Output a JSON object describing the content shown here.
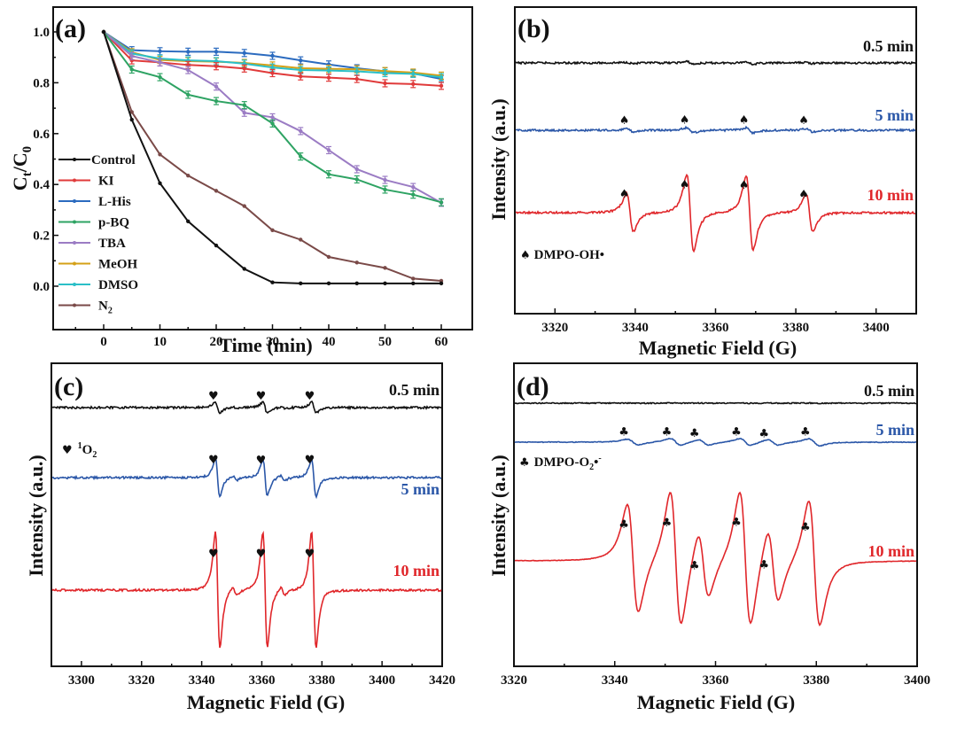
{
  "chart_data": [
    {
      "id": "a",
      "type": "line",
      "panel_label": "(a)",
      "title": "",
      "xlabel": "Time (min)",
      "ylabel": "Ct/C0",
      "ylabel_main": "C",
      "ylabel_sub1": "t",
      "ylabel_mid": "/C",
      "ylabel_sub2": "0",
      "xlim": [
        -10,
        65
      ],
      "ylim": [
        -0.1,
        1.1
      ],
      "xticks": [
        0,
        10,
        20,
        30,
        40,
        50,
        60
      ],
      "xtick_labels": [
        "0",
        "10",
        "20",
        "30",
        "40",
        "50",
        "60"
      ],
      "yticks": [
        0.0,
        0.2,
        0.4,
        0.6,
        0.8,
        1.0
      ],
      "ytick_labels": [
        "0.0",
        "0.2",
        "0.4",
        "0.6",
        "0.8",
        "1.0"
      ],
      "legend_position": "center-left",
      "x": [
        0,
        5,
        10,
        15,
        20,
        25,
        30,
        35,
        40,
        45,
        50,
        55,
        60
      ],
      "series": [
        {
          "name": "Control",
          "color": "#111111",
          "values": [
            1.0,
            0.655,
            0.405,
            0.255,
            0.16,
            0.068,
            0.015,
            0.011,
            0.011,
            0.011,
            0.011,
            0.011,
            0.011
          ]
        },
        {
          "name": "KI",
          "color": "#e03a3a",
          "values": [
            1.0,
            0.888,
            0.88,
            0.87,
            0.865,
            0.856,
            0.838,
            0.825,
            0.82,
            0.815,
            0.798,
            0.795,
            0.788
          ]
        },
        {
          "name": "L-His",
          "color": "#2b6bbf",
          "values": [
            1.0,
            0.928,
            0.924,
            0.922,
            0.922,
            0.917,
            0.906,
            0.888,
            0.872,
            0.857,
            0.845,
            0.837,
            0.815
          ]
        },
        {
          "name": "p-BQ",
          "color": "#2ea363",
          "values": [
            1.0,
            0.852,
            0.822,
            0.753,
            0.728,
            0.712,
            0.64,
            0.51,
            0.44,
            0.42,
            0.38,
            0.36,
            0.33
          ]
        },
        {
          "name": "TBA",
          "color": "#9b7cc4",
          "values": [
            1.0,
            0.905,
            0.88,
            0.85,
            0.785,
            0.682,
            0.664,
            0.61,
            0.535,
            0.46,
            0.418,
            0.39,
            0.328
          ]
        },
        {
          "name": "MeOH",
          "color": "#d4a017",
          "values": [
            1.0,
            0.92,
            0.89,
            0.885,
            0.883,
            0.878,
            0.868,
            0.857,
            0.855,
            0.853,
            0.846,
            0.84,
            0.828
          ]
        },
        {
          "name": "DMSO",
          "color": "#2bbfc7",
          "values": [
            1.0,
            0.915,
            0.895,
            0.888,
            0.885,
            0.875,
            0.86,
            0.85,
            0.848,
            0.845,
            0.838,
            0.835,
            0.822
          ]
        },
        {
          "name": "N2",
          "color": "#7a4a48",
          "values": [
            1.0,
            0.685,
            0.518,
            0.435,
            0.375,
            0.315,
            0.22,
            0.183,
            0.115,
            0.093,
            0.072,
            0.03,
            0.021
          ]
        }
      ],
      "legend_labels": [
        "Control",
        "KI",
        "L-His",
        "p-BQ",
        "TBA",
        "MeOH",
        "DMSO",
        "N"
      ],
      "legend_n2_sub": "2"
    },
    {
      "id": "b",
      "type": "line",
      "panel_label": "(b)",
      "xlabel": "Magnetic Field (G)",
      "ylabel": "Intensity (a.u.)",
      "xlim": [
        3310,
        3410
      ],
      "xticks": [
        3320,
        3340,
        3360,
        3380,
        3400
      ],
      "xtick_labels": [
        "3320",
        "3340",
        "3360",
        "3380",
        "3400"
      ],
      "annotation": "♠ DMPO-OH•",
      "annotation_symbol": "♠",
      "annotation_text": "DMPO-OH•",
      "peak_marker": "♠",
      "peak_positions": [
        3337.5,
        3352.5,
        3367.3,
        3382.2
      ],
      "series": [
        {
          "name": "0.5 min",
          "color": "#111111",
          "relative_amplitude": 0.05,
          "peak_heights": [
            0.05,
            0.1,
            0.1,
            0.05
          ]
        },
        {
          "name": "5 min",
          "color": "#2b57a8",
          "relative_amplitude": 0.15,
          "peak_heights": [
            0.12,
            0.2,
            0.2,
            0.12
          ]
        },
        {
          "name": "10 min",
          "color": "#e0262a",
          "relative_amplitude": 1.0,
          "peak_heights": [
            0.5,
            1.0,
            0.97,
            0.49
          ]
        }
      ]
    },
    {
      "id": "c",
      "type": "line",
      "panel_label": "(c)",
      "xlabel": "Magnetic Field (G)",
      "ylabel": "Intensity (a.u.)",
      "xlim": [
        3290,
        3420
      ],
      "xticks": [
        3300,
        3320,
        3340,
        3360,
        3380,
        3400,
        3420
      ],
      "xtick_labels": [
        "3300",
        "3320",
        "3340",
        "3360",
        "3380",
        "3400",
        "3420"
      ],
      "annotation_symbol": "♥",
      "annotation_sup": "1",
      "annotation_main": "O",
      "annotation_sub": "2",
      "peak_marker": "♥",
      "peak_positions": [
        3344.2,
        3360.0,
        3376.2
      ],
      "series": [
        {
          "name": "0.5 min",
          "color": "#111111",
          "relative_amplitude": 0.35,
          "peak_heights": [
            0.35,
            0.35,
            0.35
          ]
        },
        {
          "name": "5 min",
          "color": "#2b57a8",
          "relative_amplitude": 0.6,
          "peak_heights": [
            0.6,
            0.58,
            0.6
          ]
        },
        {
          "name": "10 min",
          "color": "#e0262a",
          "relative_amplitude": 1.0,
          "peak_heights": [
            1.0,
            1.0,
            1.0
          ]
        }
      ]
    },
    {
      "id": "d",
      "type": "line",
      "panel_label": "(d)",
      "xlabel": "Magnetic Field (G)",
      "ylabel": "Intensity (a.u.)",
      "xlim": [
        3320,
        3400
      ],
      "xticks": [
        3320,
        3340,
        3360,
        3380,
        3400
      ],
      "xtick_labels": [
        "3320",
        "3340",
        "3360",
        "3380",
        "3400"
      ],
      "annotation_symbol": "♣",
      "annotation_main": "DMPO-O",
      "annotation_sub": "2",
      "annotation_tail": "•",
      "annotation_sup": "-",
      "peak_marker": "♣",
      "peak_positions": [
        3342.0,
        3350.5,
        3356.0,
        3364.3,
        3369.8,
        3378.0
      ],
      "series": [
        {
          "name": "0.5 min",
          "color": "#111111",
          "relative_amplitude": 0.02,
          "peak_heights": [
            0.02,
            0.02,
            0.02,
            0.02,
            0.02,
            0.02
          ]
        },
        {
          "name": "5 min",
          "color": "#2b57a8",
          "relative_amplitude": 0.15,
          "peak_heights": [
            0.13,
            0.16,
            0.13,
            0.16,
            0.13,
            0.16
          ]
        },
        {
          "name": "10 min",
          "color": "#e0262a",
          "relative_amplitude": 1.0,
          "peak_heights": [
            0.8,
            1.0,
            0.5,
            1.0,
            0.55,
            0.92
          ]
        }
      ]
    }
  ]
}
